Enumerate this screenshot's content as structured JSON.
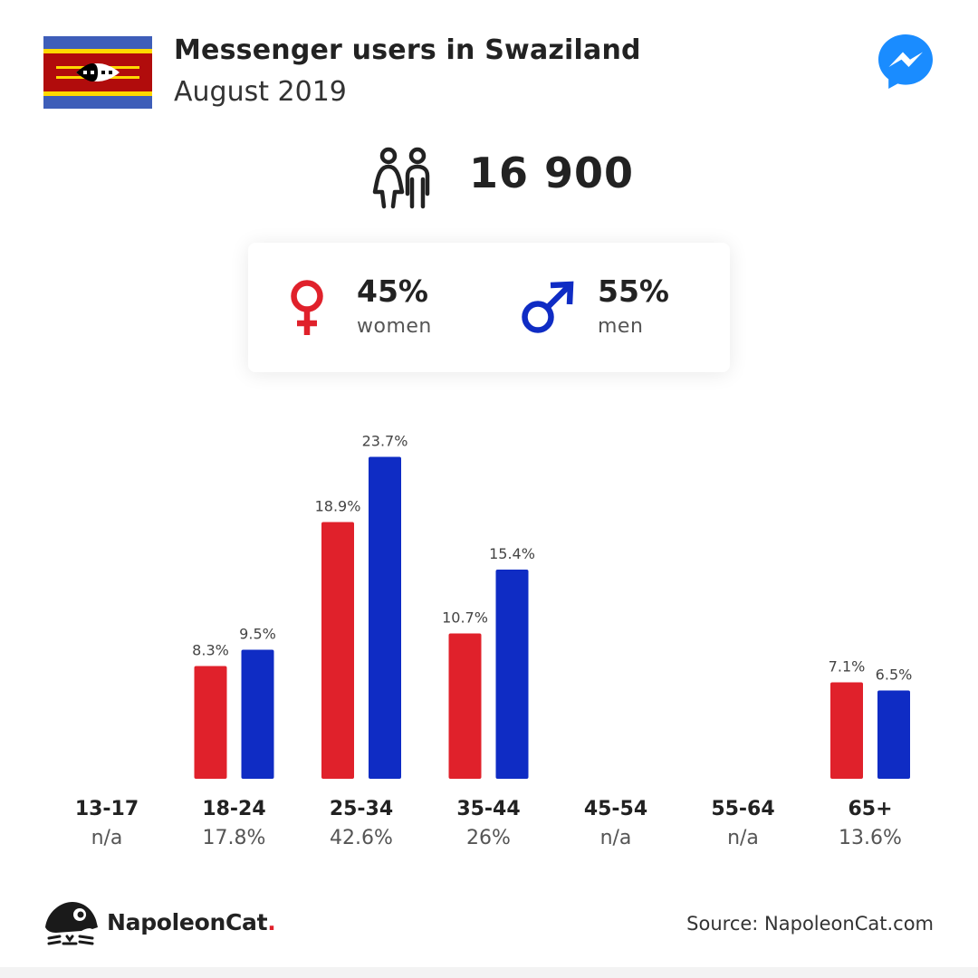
{
  "header": {
    "title": "Messenger users in Swaziland",
    "subtitle": "August 2019"
  },
  "summary": {
    "total_users": "16 900",
    "women_pct": "45%",
    "women_label": "women",
    "men_pct": "55%",
    "men_label": "men"
  },
  "colors": {
    "women": "#e0212b",
    "men": "#0f2cc4",
    "messenger": "#1a8cff"
  },
  "chart_data": {
    "type": "bar",
    "title": "",
    "xlabel": "",
    "ylabel": "",
    "ylim": [
      0,
      25
    ],
    "grid": false,
    "categories": [
      "13-17",
      "18-24",
      "25-34",
      "35-44",
      "45-54",
      "55-64",
      "65+"
    ],
    "category_totals": [
      "n/a",
      "17.8%",
      "42.6%",
      "26%",
      "n/a",
      "n/a",
      "13.6%"
    ],
    "series": [
      {
        "name": "women",
        "color": "#e0212b",
        "values": [
          null,
          8.3,
          18.9,
          10.7,
          null,
          null,
          7.1
        ],
        "labels": [
          "",
          "8.3%",
          "18.9%",
          "10.7%",
          "",
          "",
          "7.1%"
        ]
      },
      {
        "name": "men",
        "color": "#0f2cc4",
        "values": [
          null,
          9.5,
          23.7,
          15.4,
          null,
          null,
          6.5
        ],
        "labels": [
          "",
          "9.5%",
          "23.7%",
          "15.4%",
          "",
          "",
          "6.5%"
        ]
      }
    ]
  },
  "footer": {
    "brand": "NapoleonCat",
    "brand_dot": ".",
    "source": "Source: NapoleonCat.com"
  }
}
